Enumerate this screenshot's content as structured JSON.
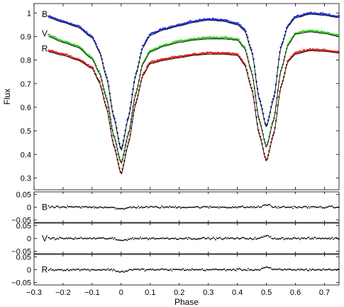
{
  "chart_data": [
    {
      "type": "scatter",
      "panel": "light-curves",
      "ylabel": "Flux",
      "xlim": [
        -0.3,
        0.75
      ],
      "ylim": [
        0.25,
        1.04
      ],
      "yticks": [
        "0.3",
        "0.4",
        "0.5",
        "0.6",
        "0.7",
        "0.8",
        "0.9",
        "1"
      ],
      "series": [
        {
          "name": "B",
          "color": "#2233dd",
          "x": [
            -0.25,
            -0.2,
            -0.15,
            -0.1,
            -0.075,
            -0.05,
            -0.025,
            0.0,
            0.025,
            0.05,
            0.075,
            0.1,
            0.15,
            0.2,
            0.25,
            0.3,
            0.35,
            0.4,
            0.425,
            0.45,
            0.475,
            0.5,
            0.525,
            0.55,
            0.575,
            0.6,
            0.65,
            0.7,
            0.75
          ],
          "y": [
            0.985,
            0.965,
            0.945,
            0.9,
            0.84,
            0.73,
            0.56,
            0.42,
            0.56,
            0.74,
            0.86,
            0.91,
            0.935,
            0.95,
            0.965,
            0.975,
            0.97,
            0.955,
            0.93,
            0.84,
            0.64,
            0.52,
            0.64,
            0.86,
            0.95,
            0.985,
            1.0,
            0.995,
            0.985
          ]
        },
        {
          "name": "V",
          "color": "#33cc22",
          "x": [
            -0.25,
            -0.2,
            -0.15,
            -0.1,
            -0.075,
            -0.05,
            -0.025,
            0.0,
            0.025,
            0.05,
            0.075,
            0.1,
            0.15,
            0.2,
            0.25,
            0.3,
            0.35,
            0.4,
            0.425,
            0.45,
            0.475,
            0.5,
            0.525,
            0.55,
            0.575,
            0.6,
            0.65,
            0.7,
            0.75
          ],
          "y": [
            0.905,
            0.88,
            0.86,
            0.81,
            0.75,
            0.64,
            0.48,
            0.365,
            0.49,
            0.66,
            0.79,
            0.84,
            0.865,
            0.88,
            0.89,
            0.895,
            0.895,
            0.89,
            0.855,
            0.75,
            0.55,
            0.435,
            0.55,
            0.76,
            0.87,
            0.915,
            0.925,
            0.918,
            0.905
          ]
        },
        {
          "name": "R",
          "color": "#dd2222",
          "x": [
            -0.25,
            -0.2,
            -0.15,
            -0.1,
            -0.075,
            -0.05,
            -0.025,
            0.0,
            0.025,
            0.05,
            0.075,
            0.1,
            0.15,
            0.2,
            0.25,
            0.3,
            0.35,
            0.4,
            0.425,
            0.45,
            0.475,
            0.5,
            0.525,
            0.55,
            0.575,
            0.6,
            0.65,
            0.7,
            0.75
          ],
          "y": [
            0.84,
            0.825,
            0.805,
            0.77,
            0.71,
            0.6,
            0.44,
            0.32,
            0.45,
            0.62,
            0.74,
            0.79,
            0.805,
            0.815,
            0.825,
            0.83,
            0.83,
            0.825,
            0.785,
            0.68,
            0.49,
            0.375,
            0.49,
            0.69,
            0.8,
            0.83,
            0.845,
            0.842,
            0.835
          ]
        }
      ]
    },
    {
      "type": "scatter",
      "panel": "residuals",
      "xlabel": "Phase",
      "xlim": [
        -0.3,
        0.75
      ],
      "xticks": [
        "−0.3",
        "−0.2",
        "−0.1",
        "0",
        "0.1",
        "0.2",
        "0.3",
        "0.4",
        "0.5",
        "0.6",
        "0.7"
      ],
      "ylim": [
        -0.06,
        0.06
      ],
      "yticks": [
        "0.05",
        "0",
        "−0.05"
      ],
      "series": [
        {
          "name": "B",
          "x": [
            -0.25,
            0.0,
            0.5,
            0.75
          ],
          "y": [
            0,
            0,
            0,
            0
          ]
        },
        {
          "name": "V",
          "x": [
            -0.25,
            0.0,
            0.5,
            0.75
          ],
          "y": [
            0,
            0,
            0,
            0
          ]
        },
        {
          "name": "R",
          "x": [
            -0.25,
            0.0,
            0.5,
            0.75
          ],
          "y": [
            0,
            0,
            0,
            0
          ]
        }
      ]
    }
  ]
}
